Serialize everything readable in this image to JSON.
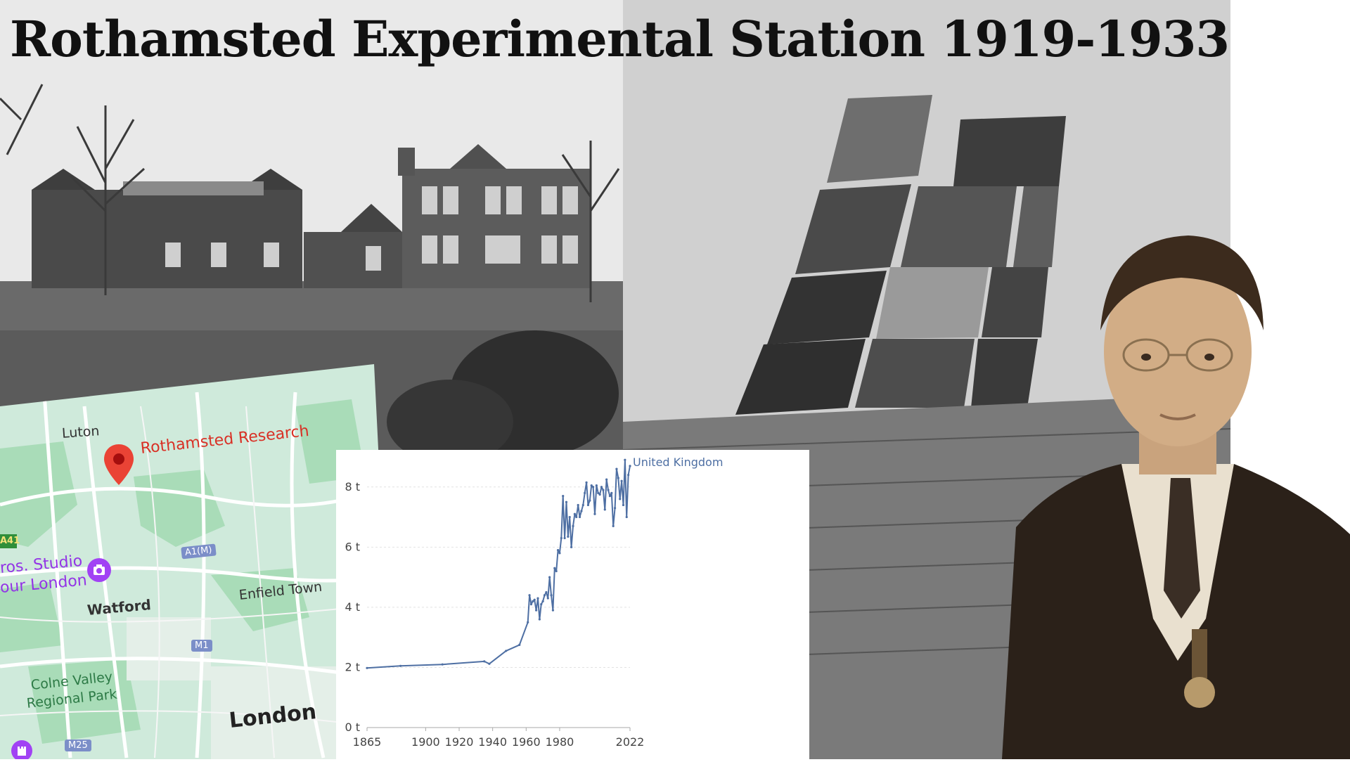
{
  "title": "Rothamsted Experimental Station 1919-1933",
  "icons": {
    "map_pin": "map-pin-icon",
    "camera": "camera-icon",
    "castle": "castle-icon"
  },
  "map": {
    "place_label": "Rothamsted Research",
    "towns": {
      "luton": "Luton",
      "watford": "Watford",
      "enfield": "Enfield Town",
      "london": "London"
    },
    "park_line1": "Colne Valley",
    "park_line2": "Regional Park",
    "studio_line1": "ros. Studio",
    "studio_line2": "our London",
    "roads": {
      "a1m": "A1(M)",
      "m1": "M1",
      "m25": "M25",
      "a41": "A41"
    },
    "colors": {
      "background": "#cfeadb",
      "green": "#a9dcb8",
      "road": "#ffffff",
      "pin": "#ea4335",
      "place_text": "#d93025",
      "studio_text": "#9334e6",
      "motorway": "#7b8ec8"
    }
  },
  "chart_data": {
    "type": "line",
    "series": [
      {
        "name": "United Kingdom",
        "color": "#4e6fa3",
        "x": [
          1865,
          1885,
          1910,
          1935,
          1938,
          1948,
          1956,
          1961,
          1962,
          1963,
          1964,
          1965,
          1966,
          1967,
          1968,
          1969,
          1970,
          1971,
          1972,
          1973,
          1974,
          1975,
          1976,
          1977,
          1978,
          1979,
          1980,
          1981,
          1982,
          1983,
          1984,
          1985,
          1986,
          1987,
          1988,
          1989,
          1990,
          1991,
          1992,
          1993,
          1994,
          1995,
          1996,
          1997,
          1998,
          1999,
          2000,
          2001,
          2002,
          2003,
          2004,
          2005,
          2006,
          2007,
          2008,
          2009,
          2010,
          2011,
          2012,
          2013,
          2014,
          2015,
          2016,
          2017,
          2018,
          2019,
          2020,
          2021,
          2022
        ],
        "y": [
          1.98,
          2.05,
          2.1,
          2.2,
          2.12,
          2.55,
          2.75,
          3.5,
          4.4,
          4.1,
          4.2,
          4.25,
          3.9,
          4.3,
          3.6,
          4.1,
          4.2,
          4.4,
          4.5,
          4.3,
          5.0,
          4.4,
          3.9,
          5.3,
          5.2,
          5.9,
          5.8,
          6.3,
          7.7,
          6.3,
          7.5,
          6.35,
          7.0,
          6.0,
          6.7,
          7.1,
          7.0,
          7.4,
          7.0,
          7.2,
          7.4,
          7.8,
          8.15,
          7.4,
          7.55,
          8.05,
          8.0,
          7.1,
          8.05,
          7.8,
          7.75,
          8.0,
          7.9,
          7.25,
          8.25,
          7.9,
          7.7,
          7.8,
          6.7,
          7.3,
          8.6,
          8.3,
          7.6,
          8.2,
          7.4,
          8.9,
          7.0,
          8.4,
          8.7
        ]
      }
    ],
    "x_ticks": [
      "1865",
      "1900",
      "1920",
      "1940",
      "1960",
      "1980",
      "2022"
    ],
    "y_ticks": [
      "0 t",
      "2 t",
      "4 t",
      "6 t",
      "8 t"
    ],
    "xlim": [
      1865,
      2022
    ],
    "ylim": [
      0,
      9
    ],
    "grid": true,
    "legend": "top-right"
  }
}
